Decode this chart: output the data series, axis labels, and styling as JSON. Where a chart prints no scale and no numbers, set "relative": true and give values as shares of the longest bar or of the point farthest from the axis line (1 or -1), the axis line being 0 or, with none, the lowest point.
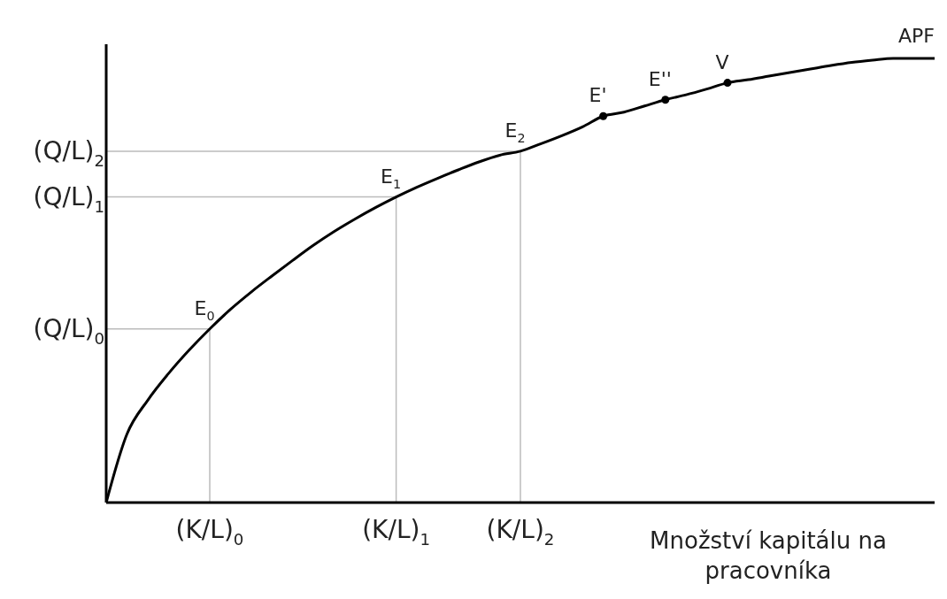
{
  "chart_data": {
    "type": "line",
    "relative": true,
    "xlabel": "Množství kapitálu na pracovníka",
    "categories": [
      null,
      null,
      null,
      null,
      null,
      "(K/L)$_{0}$",
      null,
      null,
      null,
      null,
      null,
      null,
      null,
      null,
      "(K/L)$_{1}$",
      null,
      null,
      null,
      null,
      null,
      "(K/L)$_{2}$",
      null,
      null,
      null,
      null,
      null,
      null,
      null,
      null,
      null,
      null,
      null,
      null,
      null,
      null,
      null,
      null,
      null,
      null,
      null,
      null
    ],
    "series": [
      {
        "name": "APF",
        "color": "#000000",
        "values": [
          0,
          0.154,
          0.23,
          0.29,
          0.343,
          0.391,
          0.435,
          0.474,
          0.51,
          0.545,
          0.579,
          0.61,
          0.638,
          0.664,
          0.688,
          0.71,
          0.73,
          0.749,
          0.767,
          0.782,
          0.791,
          0.808,
          0.826,
          0.846,
          0.87,
          0.879,
          0.893,
          0.907,
          0.918,
          0.931,
          0.945,
          0.952,
          0.96,
          0.968,
          0.976,
          0.984,
          0.991,
          0.996,
          1,
          1,
          1
        ]
      },
      {
        "type": "scatter",
        "color": "#000000",
        "marker": "circle",
        "values": [
          null,
          null,
          null,
          null,
          null,
          null,
          null,
          null,
          null,
          null,
          null,
          null,
          null,
          null,
          null,
          null,
          null,
          null,
          null,
          null,
          null,
          null,
          null,
          null,
          0.87,
          null,
          null,
          0.907,
          null,
          null,
          0.945,
          null,
          null,
          null,
          null,
          null,
          null,
          null,
          null,
          null,
          null
        ]
      }
    ],
    "ref_lines": [
      {
        "axis": "y",
        "value": 0.391,
        "label": "(Q/L)$_{0}$",
        "color": "#bbbbbb"
      },
      {
        "axis": "y",
        "value": 0.688,
        "label": "(Q/L)$_{1}$",
        "color": "#bbbbbb"
      },
      {
        "axis": "y",
        "value": 0.791,
        "label": "(Q/L)$_{2}$",
        "color": "#bbbbbb"
      }
    ],
    "annotations": [
      {
        "text": "E$_{0}$",
        "x": "(K/L)$_{0}$",
        "y": 0.391
      },
      {
        "text": "E$_{1}$",
        "x": "(K/L)$_{1}$",
        "y": 0.688
      },
      {
        "text": "E$_{2}$",
        "x": "(K/L)$_{2}$",
        "y": 0.791
      },
      {
        "text": "E'",
        "y": 0.87
      },
      {
        "text": "E''",
        "y": 0.907
      },
      {
        "text": "V",
        "y": 0.945
      }
    ]
  }
}
